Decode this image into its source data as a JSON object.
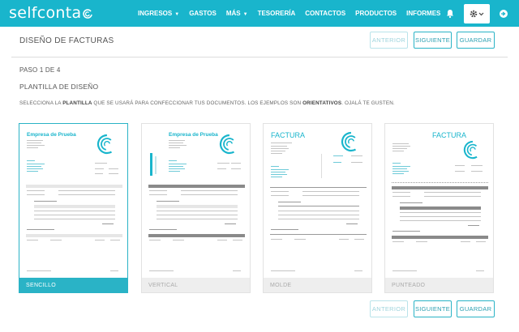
{
  "nav": {
    "brand": "selfconta",
    "menu": [
      {
        "label": "INGRESOS",
        "caret": true
      },
      {
        "label": "GASTOS",
        "caret": false
      },
      {
        "label": "MÁS",
        "caret": true
      },
      {
        "label": "TESORERÍA",
        "caret": false
      },
      {
        "label": "CONTACTOS",
        "caret": false
      },
      {
        "label": "PRODUCTOS",
        "caret": false
      },
      {
        "label": "INFORMES",
        "caret": false
      }
    ],
    "icons": [
      "bell-icon",
      "gear-icon",
      "logout-icon"
    ]
  },
  "header": {
    "title": "DISEÑO DE FACTURAS",
    "prev_label": "ANTERIOR",
    "next_label": "SIGUIENTE",
    "save_label": "GUARDAR"
  },
  "step": "PASO 1 DE 4",
  "subtitle": "PLANTILLA DE DISEÑO",
  "description": {
    "p1": "SELECCIONA LA ",
    "b1": "PLANTILLA",
    "p2": " QUE SE USARÁ PARA CONFECCIONAR TUS DOCUMENTOS. LOS EJEMPLOS SON ",
    "b2": "ORIENTATIVOS",
    "p3": ". OJALÁ TE GUSTEN."
  },
  "templates": [
    {
      "label": "SENCILLO",
      "selected": true,
      "preview_title": "Empresa de Prueba"
    },
    {
      "label": "VERTICAL",
      "selected": false,
      "preview_title": "Empresa de Prueba"
    },
    {
      "label": "MOLDE",
      "selected": false,
      "preview_title": "FACTURA"
    },
    {
      "label": "PUNTEADO",
      "selected": false,
      "preview_title": "FACTURA"
    }
  ],
  "colors": {
    "accent": "#19b5cc",
    "border": "#2ab3c6"
  }
}
